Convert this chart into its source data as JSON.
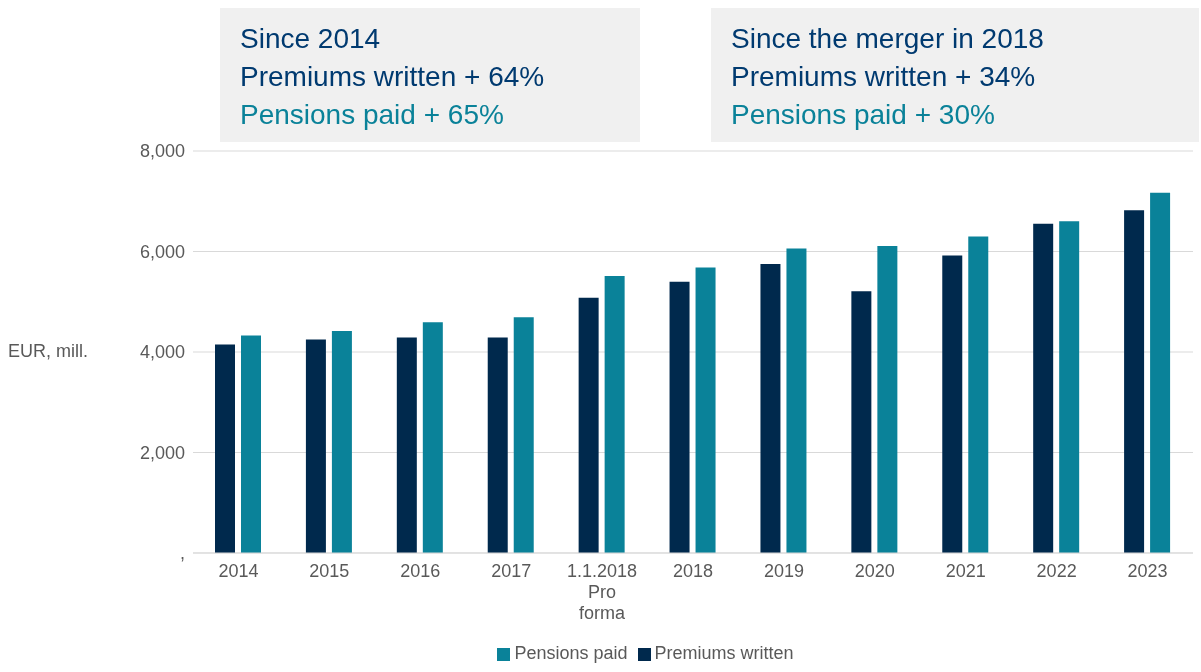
{
  "chart_data": {
    "type": "bar",
    "ylabel": "EUR, mill.",
    "categories": [
      "2014",
      "2015",
      "2016",
      "2017",
      "1.1.2018 Pro forma",
      "2018",
      "2019",
      "2020",
      "2021",
      "2022",
      "2023"
    ],
    "series": [
      {
        "name": "Premiums written",
        "color": "#00294d",
        "values": [
          4150,
          4250,
          4290,
          4290,
          5080,
          5400,
          5750,
          5210,
          5920,
          6550,
          6820
        ]
      },
      {
        "name": "Pensions paid",
        "color": "#0a8299",
        "values": [
          4330,
          4420,
          4590,
          4690,
          5510,
          5680,
          6060,
          6110,
          6300,
          6600,
          7170
        ]
      }
    ],
    "ylim": [
      0,
      8000
    ],
    "yticks": [
      {
        "value": 0,
        "label": ","
      },
      {
        "value": 2000,
        "label": "2,000"
      },
      {
        "value": 4000,
        "label": "4,000"
      },
      {
        "value": 6000,
        "label": "6,000"
      },
      {
        "value": 8000,
        "label": "8,000"
      }
    ],
    "grid": "y",
    "legend": "bottom",
    "annotations": [
      "Since 2014",
      "Premiums written + 64%",
      "Pensions paid + 65%",
      "Since the merger in 2018",
      "Premiums written + 34%",
      "Pensions paid + 30%"
    ]
  }
}
